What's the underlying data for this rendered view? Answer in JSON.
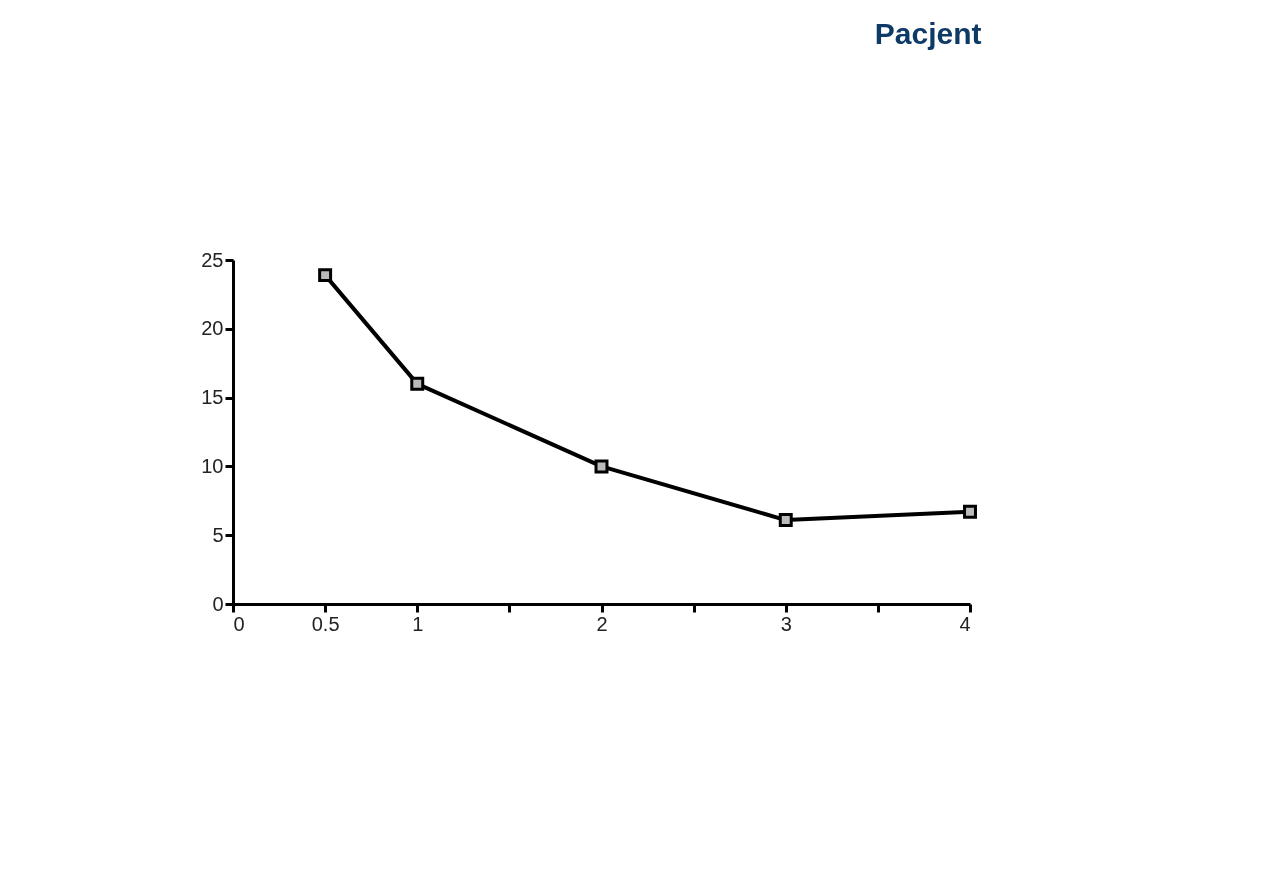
{
  "chart_data": {
    "type": "line",
    "title": "Pacjent",
    "x": [
      0.5,
      1,
      2,
      3,
      4
    ],
    "series": [
      {
        "color": "#000000",
        "values": [
          23.9,
          16.0,
          10.0,
          6.1,
          6.7
        ]
      }
    ],
    "xlim": [
      0,
      4
    ],
    "ylim": [
      0,
      25
    ],
    "xticks": [
      0,
      0.5,
      1,
      {
        "value": 1.5,
        "label": null
      },
      2,
      {
        "value": 2.5,
        "label": null
      },
      3,
      {
        "value": 3.5,
        "label": null
      },
      4
    ],
    "yticks": [
      0,
      5,
      10,
      15,
      20,
      25
    ],
    "marker": "square",
    "line_style": "solid",
    "grid": false
  }
}
